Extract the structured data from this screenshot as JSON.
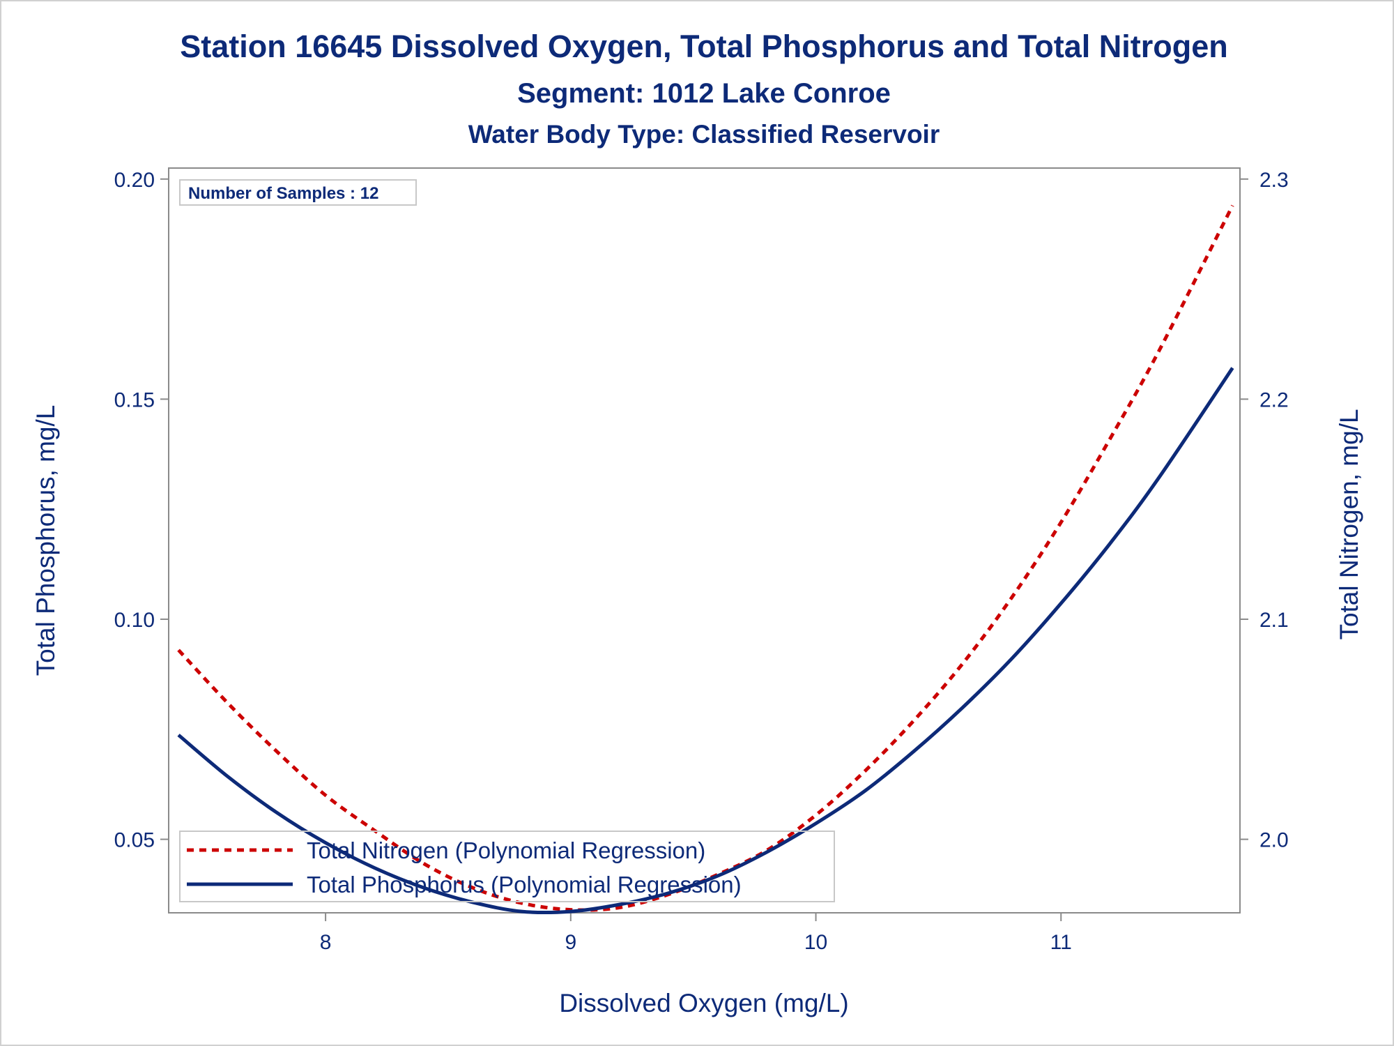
{
  "titles": {
    "main": "Station 16645  Dissolved Oxygen, Total Phosphorus and Total Nitrogen",
    "segment": "Segment: 1012  Lake Conroe",
    "water_body": "Water Body Type: Classified Reservoir"
  },
  "inset": {
    "text": "Number of Samples : 12"
  },
  "colors": {
    "text": "#0d2a78",
    "nitrogen": "#cc0000",
    "phosphorus": "#0d2a78",
    "axis": "#8a8a8a"
  },
  "chart_data": {
    "type": "line",
    "xlabel": "Dissolved Oxygen (mg/L)",
    "ylabel": "Total Phosphorus, mg/L",
    "y2label": "Total Nitrogen, mg/L",
    "xlim": [
      7.36,
      11.73
    ],
    "ylim": [
      0.0333,
      0.2025
    ],
    "y2lim": [
      1.9666,
      2.305
    ],
    "xticks": [
      "8",
      "9",
      "10",
      "11"
    ],
    "yticks": [
      "0.05",
      "0.10",
      "0.15",
      "0.20"
    ],
    "y2ticks": [
      "2.0",
      "2.1",
      "2.2",
      "2.3"
    ],
    "grid": false,
    "legend_position": "bottom-left",
    "series": [
      {
        "name": "Total Nitrogen (Polynomial Regression)",
        "axis": "right",
        "style": "dashed",
        "x": [
          7.4,
          7.6,
          7.8,
          8.0,
          8.2,
          8.4,
          8.6,
          8.8,
          9.0,
          9.2,
          9.4,
          9.6,
          9.8,
          10.0,
          10.2,
          10.4,
          10.6,
          10.8,
          11.0,
          11.2,
          11.4,
          11.7
        ],
        "values": [
          2.086,
          2.062,
          2.04,
          2.02,
          2.004,
          1.989,
          1.978,
          1.971,
          1.968,
          1.969,
          1.975,
          1.984,
          1.995,
          2.011,
          2.031,
          2.054,
          2.08,
          2.11,
          2.144,
          2.182,
          2.222,
          2.288
        ]
      },
      {
        "name": "Total Phosphorus (Polynomial Regression)",
        "axis": "left",
        "style": "solid",
        "x": [
          7.4,
          7.6,
          7.8,
          8.0,
          8.2,
          8.4,
          8.6,
          8.8,
          9.0,
          9.2,
          9.4,
          9.6,
          9.8,
          10.0,
          10.2,
          10.4,
          10.6,
          10.8,
          11.0,
          11.2,
          11.4,
          11.7
        ],
        "values": [
          0.0737,
          0.0643,
          0.0561,
          0.0492,
          0.0435,
          0.039,
          0.0357,
          0.0336,
          0.0336,
          0.0352,
          0.0378,
          0.0417,
          0.0471,
          0.0536,
          0.061,
          0.07,
          0.08,
          0.0911,
          0.1036,
          0.1172,
          0.1322,
          0.1571
        ]
      }
    ]
  }
}
